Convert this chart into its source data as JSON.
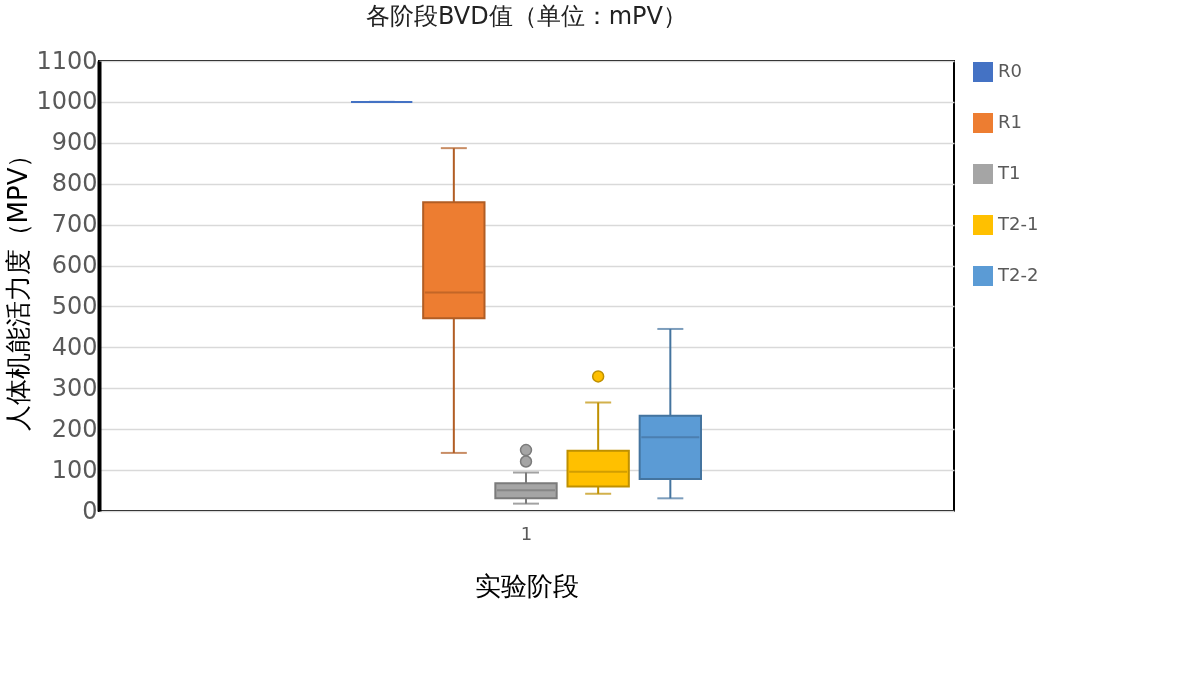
{
  "chart_data": {
    "type": "box",
    "title": "各阶段BVD值（单位：mPV）",
    "xlabel": "实验阶段",
    "ylabel": "人体机能活力度（MPV）",
    "categories": [
      "1"
    ],
    "series": [
      {
        "name": "R0",
        "color": "#4472c4",
        "boxes": [
          {
            "low": 1000,
            "q1": 1000,
            "median": 1000,
            "q3": 1000,
            "high": 1000
          }
        ]
      },
      {
        "name": "R1",
        "color": "#ed7d31",
        "boxes": [
          {
            "low": 142,
            "q1": 471,
            "median": 534,
            "q3": 755,
            "high": 887
          }
        ]
      },
      {
        "name": "T1",
        "color": "#a5a5a5",
        "boxes": [
          {
            "low": 18,
            "q1": 31,
            "median": 51,
            "q3": 68,
            "high": 94,
            "outliers": [
              121,
              149
            ]
          }
        ]
      },
      {
        "name": "T2-1",
        "color": "#ffc000",
        "boxes": [
          {
            "low": 42,
            "q1": 60,
            "median": 96,
            "q3": 147,
            "high": 265,
            "outliers": [
              329
            ]
          }
        ]
      },
      {
        "name": "T2-2",
        "color": "#5b9bd5",
        "boxes": [
          {
            "low": 31,
            "q1": 78,
            "median": 180,
            "q3": 233,
            "high": 445
          }
        ]
      }
    ],
    "ylim": [
      0,
      1100
    ],
    "yticks": [
      0,
      100,
      200,
      300,
      400,
      500,
      600,
      700,
      800,
      900,
      1000,
      1100
    ],
    "grid": "y",
    "legend": "right"
  }
}
